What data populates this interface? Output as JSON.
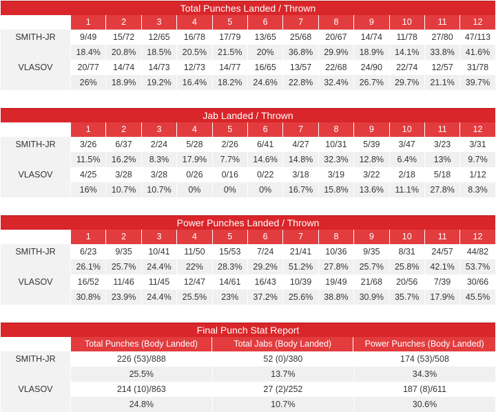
{
  "rounds": [
    "1",
    "2",
    "3",
    "4",
    "5",
    "6",
    "7",
    "8",
    "9",
    "10",
    "11",
    "12"
  ],
  "tables": [
    {
      "title": "Total Punches Landed / Thrown",
      "rows": [
        {
          "name": "SMITH-JR",
          "values": [
            "9/49",
            "15/72",
            "12/65",
            "16/78",
            "17/79",
            "13/65",
            "25/68",
            "20/67",
            "14/74",
            "11/78",
            "27/80",
            "47/113"
          ],
          "pcts": [
            "18.4%",
            "20.8%",
            "18.5%",
            "20.5%",
            "21.5%",
            "20%",
            "36.8%",
            "29.9%",
            "18.9%",
            "14.1%",
            "33.8%",
            "41.6%"
          ]
        },
        {
          "name": "VLASOV",
          "values": [
            "20/77",
            "14/74",
            "14/73",
            "12/73",
            "14/77",
            "16/65",
            "13/57",
            "22/68",
            "24/90",
            "22/74",
            "12/57",
            "31/78"
          ],
          "pcts": [
            "26%",
            "18.9%",
            "19.2%",
            "16.4%",
            "18.2%",
            "24.6%",
            "22.8%",
            "32.4%",
            "26.7%",
            "29.7%",
            "21.1%",
            "39.7%"
          ]
        }
      ]
    },
    {
      "title": "Jab Landed / Thrown",
      "rows": [
        {
          "name": "SMITH-JR",
          "values": [
            "3/26",
            "6/37",
            "2/24",
            "5/28",
            "2/26",
            "6/41",
            "4/27",
            "10/31",
            "5/39",
            "3/47",
            "3/23",
            "3/31"
          ],
          "pcts": [
            "11.5%",
            "16.2%",
            "8.3%",
            "17.9%",
            "7.7%",
            "14.6%",
            "14.8%",
            "32.3%",
            "12.8%",
            "6.4%",
            "13%",
            "9.7%"
          ]
        },
        {
          "name": "VLASOV",
          "values": [
            "4/25",
            "3/28",
            "3/28",
            "0/26",
            "0/16",
            "0/22",
            "3/18",
            "3/19",
            "3/22",
            "2/18",
            "5/18",
            "1/12"
          ],
          "pcts": [
            "16%",
            "10.7%",
            "10.7%",
            "0%",
            "0%",
            "0%",
            "16.7%",
            "15.8%",
            "13.6%",
            "11.1%",
            "27.8%",
            "8.3%"
          ]
        }
      ]
    },
    {
      "title": "Power Punches Landed / Thrown",
      "rows": [
        {
          "name": "SMITH-JR",
          "values": [
            "6/23",
            "9/35",
            "10/41",
            "11/50",
            "15/53",
            "7/24",
            "21/41",
            "10/36",
            "9/35",
            "8/31",
            "24/57",
            "44/82"
          ],
          "pcts": [
            "26.1%",
            "25.7%",
            "24.4%",
            "22%",
            "28.3%",
            "29.2%",
            "51.2%",
            "27.8%",
            "25.7%",
            "25.8%",
            "42.1%",
            "53.7%"
          ]
        },
        {
          "name": "VLASOV",
          "values": [
            "16/52",
            "11/46",
            "11/45",
            "12/47",
            "14/61",
            "16/43",
            "10/39",
            "19/49",
            "21/68",
            "20/56",
            "7/39",
            "30/66"
          ],
          "pcts": [
            "30.8%",
            "23.9%",
            "24.4%",
            "25.5%",
            "23%",
            "37.2%",
            "25.6%",
            "38.8%",
            "30.9%",
            "35.7%",
            "17.9%",
            "45.5%"
          ]
        }
      ]
    }
  ],
  "final": {
    "title": "Final Punch Stat Report",
    "columns": [
      "Total Punches (Body Landed)",
      "Total Jabs (Body Landed)",
      "Power Punches (Body Landed)"
    ],
    "rows": [
      {
        "name": "SMITH-JR",
        "values": [
          "226 (53)/888",
          "52 (0)/380",
          "174 (53)/508"
        ],
        "pcts": [
          "25.5%",
          "13.7%",
          "34.3%"
        ]
      },
      {
        "name": "VLASOV",
        "values": [
          "214 (10)/863",
          "27 (2)/252",
          "187 (8)/611"
        ],
        "pcts": [
          "24.8%",
          "10.7%",
          "30.6%"
        ]
      }
    ]
  },
  "colors": {
    "title_bg": "#d9262a",
    "header_bg": "#e23c3f",
    "row_alt": "#f0f0f0"
  }
}
